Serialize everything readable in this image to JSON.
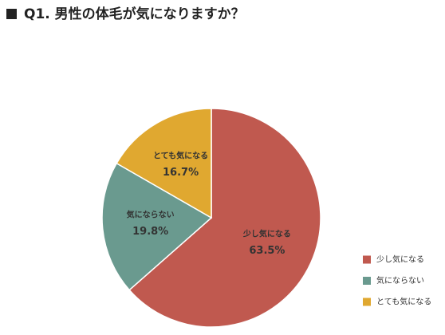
{
  "chart_data": {
    "type": "pie",
    "title": "Q1. 男性の体毛が気になりますか？",
    "categories": [
      "少し気になる",
      "気にならない",
      "とても気になる"
    ],
    "values": [
      63.5,
      19.8,
      16.7
    ],
    "value_labels": [
      "63.5%",
      "19.8%",
      "16.7%"
    ],
    "colors": [
      "#c0594f",
      "#6a9a8f",
      "#e0a830"
    ],
    "legend": "bottom-right"
  }
}
